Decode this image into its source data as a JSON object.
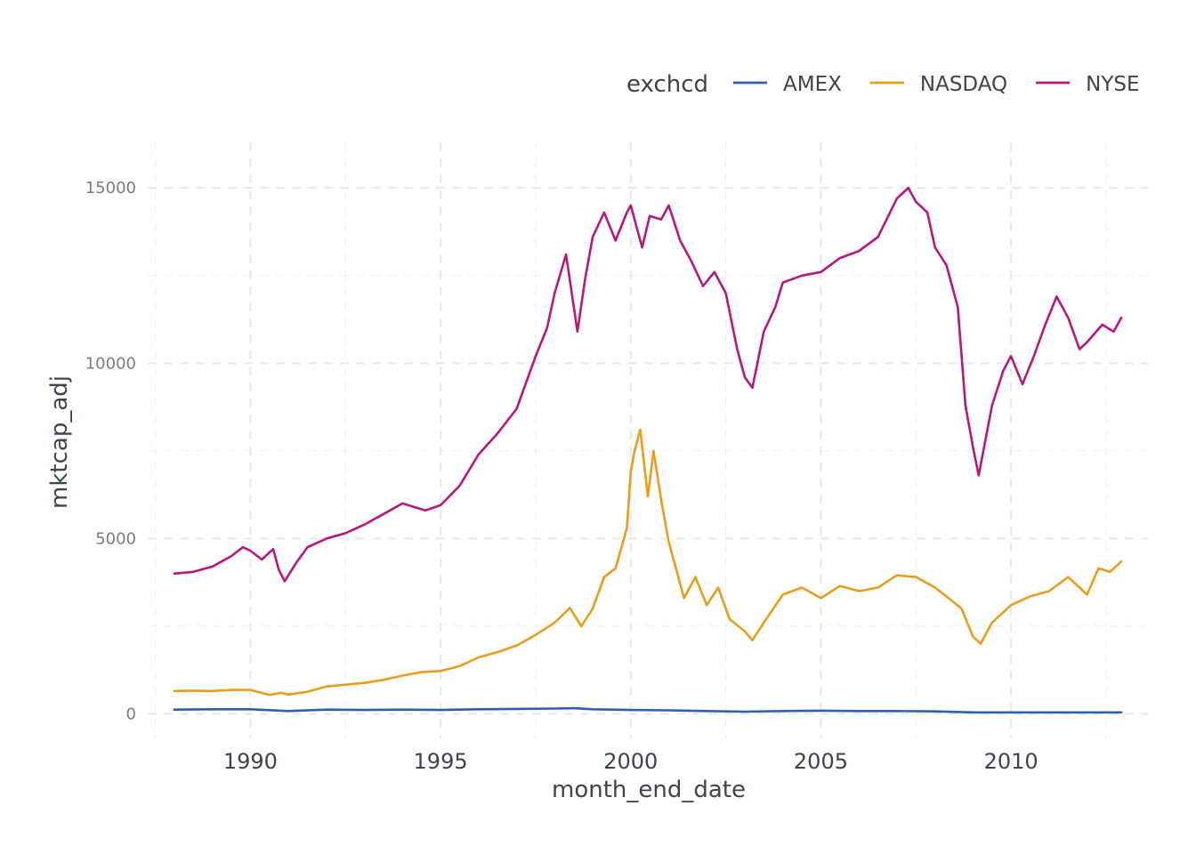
{
  "chart_data": {
    "type": "line",
    "xlabel": "month_end_date",
    "ylabel": "mktcap_adj",
    "legend_title": "exchcd",
    "legend_position": "top-right",
    "grid": "dashed major and minor",
    "xlim": [
      1987.3,
      2013.6
    ],
    "ylim": [
      -700,
      16300
    ],
    "x_ticks": [
      1990,
      1995,
      2000,
      2005,
      2010
    ],
    "x_tick_labels": [
      "1990",
      "1995",
      "2000",
      "2005",
      "2010"
    ],
    "y_ticks": [
      0,
      5000,
      10000,
      15000
    ],
    "y_tick_labels": [
      "0",
      "5000",
      "10000",
      "15000"
    ],
    "series": [
      {
        "name": "AMEX",
        "color": "#2f5fb3",
        "points": [
          [
            1988.0,
            120
          ],
          [
            1989.0,
            130
          ],
          [
            1990.0,
            130
          ],
          [
            1991.0,
            80
          ],
          [
            1992.0,
            120
          ],
          [
            1993.0,
            110
          ],
          [
            1994.0,
            120
          ],
          [
            1995.0,
            110
          ],
          [
            1996.0,
            130
          ],
          [
            1997.0,
            140
          ],
          [
            1998.0,
            150
          ],
          [
            1998.5,
            160
          ],
          [
            1999.0,
            130
          ],
          [
            2000.0,
            110
          ],
          [
            2001.0,
            100
          ],
          [
            2002.0,
            80
          ],
          [
            2003.0,
            60
          ],
          [
            2004.0,
            80
          ],
          [
            2005.0,
            90
          ],
          [
            2006.0,
            80
          ],
          [
            2007.0,
            80
          ],
          [
            2008.0,
            70
          ],
          [
            2009.0,
            40
          ],
          [
            2010.0,
            40
          ],
          [
            2011.0,
            40
          ],
          [
            2012.0,
            40
          ],
          [
            2012.9,
            40
          ]
        ]
      },
      {
        "name": "NASDAQ",
        "color": "#e89e1b",
        "points": [
          [
            1988.0,
            650
          ],
          [
            1988.5,
            660
          ],
          [
            1989.0,
            650
          ],
          [
            1989.5,
            680
          ],
          [
            1990.0,
            680
          ],
          [
            1990.5,
            540
          ],
          [
            1990.8,
            600
          ],
          [
            1991.0,
            550
          ],
          [
            1991.5,
            630
          ],
          [
            1992.0,
            780
          ],
          [
            1992.5,
            830
          ],
          [
            1993.0,
            880
          ],
          [
            1993.5,
            970
          ],
          [
            1994.0,
            1090
          ],
          [
            1994.5,
            1190
          ],
          [
            1995.0,
            1220
          ],
          [
            1995.5,
            1360
          ],
          [
            1996.0,
            1610
          ],
          [
            1996.5,
            1760
          ],
          [
            1997.0,
            1950
          ],
          [
            1997.5,
            2250
          ],
          [
            1998.0,
            2600
          ],
          [
            1998.4,
            3020
          ],
          [
            1998.7,
            2500
          ],
          [
            1999.0,
            3000
          ],
          [
            1999.3,
            3900
          ],
          [
            1999.6,
            4150
          ],
          [
            1999.9,
            5300
          ],
          [
            2000.0,
            6900
          ],
          [
            2000.1,
            7500
          ],
          [
            2000.25,
            8100
          ],
          [
            2000.45,
            6200
          ],
          [
            2000.6,
            7500
          ],
          [
            2000.8,
            6100
          ],
          [
            2001.0,
            4900
          ],
          [
            2001.2,
            4100
          ],
          [
            2001.4,
            3300
          ],
          [
            2001.7,
            3900
          ],
          [
            2002.0,
            3100
          ],
          [
            2002.3,
            3600
          ],
          [
            2002.6,
            2700
          ],
          [
            2003.0,
            2350
          ],
          [
            2003.2,
            2100
          ],
          [
            2003.5,
            2600
          ],
          [
            2004.0,
            3400
          ],
          [
            2004.5,
            3600
          ],
          [
            2005.0,
            3300
          ],
          [
            2005.5,
            3650
          ],
          [
            2006.0,
            3500
          ],
          [
            2006.5,
            3600
          ],
          [
            2007.0,
            3950
          ],
          [
            2007.5,
            3900
          ],
          [
            2008.0,
            3600
          ],
          [
            2008.3,
            3350
          ],
          [
            2008.7,
            3000
          ],
          [
            2009.0,
            2200
          ],
          [
            2009.2,
            2000
          ],
          [
            2009.5,
            2600
          ],
          [
            2010.0,
            3100
          ],
          [
            2010.5,
            3350
          ],
          [
            2011.0,
            3500
          ],
          [
            2011.5,
            3900
          ],
          [
            2011.8,
            3600
          ],
          [
            2012.0,
            3400
          ],
          [
            2012.3,
            4150
          ],
          [
            2012.6,
            4050
          ],
          [
            2012.9,
            4350
          ]
        ]
      },
      {
        "name": "NYSE",
        "color": "#b8177d",
        "points": [
          [
            1988.0,
            4000
          ],
          [
            1988.5,
            4050
          ],
          [
            1989.0,
            4200
          ],
          [
            1989.5,
            4500
          ],
          [
            1989.8,
            4750
          ],
          [
            1990.0,
            4650
          ],
          [
            1990.3,
            4400
          ],
          [
            1990.6,
            4700
          ],
          [
            1990.75,
            4100
          ],
          [
            1990.9,
            3780
          ],
          [
            1991.2,
            4300
          ],
          [
            1991.5,
            4750
          ],
          [
            1992.0,
            5000
          ],
          [
            1992.5,
            5150
          ],
          [
            1993.0,
            5400
          ],
          [
            1993.5,
            5700
          ],
          [
            1994.0,
            6000
          ],
          [
            1994.3,
            5900
          ],
          [
            1994.6,
            5800
          ],
          [
            1995.0,
            5950
          ],
          [
            1995.5,
            6500
          ],
          [
            1996.0,
            7400
          ],
          [
            1996.5,
            8000
          ],
          [
            1997.0,
            8700
          ],
          [
            1997.5,
            10200
          ],
          [
            1997.8,
            11000
          ],
          [
            1998.0,
            12000
          ],
          [
            1998.3,
            13100
          ],
          [
            1998.6,
            10900
          ],
          [
            1998.8,
            12400
          ],
          [
            1999.0,
            13600
          ],
          [
            1999.3,
            14300
          ],
          [
            1999.6,
            13500
          ],
          [
            1999.9,
            14300
          ],
          [
            2000.0,
            14500
          ],
          [
            2000.3,
            13300
          ],
          [
            2000.5,
            14200
          ],
          [
            2000.8,
            14100
          ],
          [
            2001.0,
            14500
          ],
          [
            2001.3,
            13500
          ],
          [
            2001.6,
            12900
          ],
          [
            2001.9,
            12200
          ],
          [
            2002.2,
            12600
          ],
          [
            2002.5,
            12000
          ],
          [
            2002.8,
            10400
          ],
          [
            2003.0,
            9600
          ],
          [
            2003.2,
            9300
          ],
          [
            2003.5,
            10900
          ],
          [
            2003.8,
            11600
          ],
          [
            2004.0,
            12300
          ],
          [
            2004.5,
            12500
          ],
          [
            2005.0,
            12600
          ],
          [
            2005.5,
            13000
          ],
          [
            2006.0,
            13200
          ],
          [
            2006.5,
            13600
          ],
          [
            2007.0,
            14700
          ],
          [
            2007.3,
            15000
          ],
          [
            2007.5,
            14600
          ],
          [
            2007.8,
            14300
          ],
          [
            2008.0,
            13300
          ],
          [
            2008.3,
            12800
          ],
          [
            2008.6,
            11600
          ],
          [
            2008.8,
            8800
          ],
          [
            2009.0,
            7600
          ],
          [
            2009.15,
            6800
          ],
          [
            2009.5,
            8800
          ],
          [
            2009.8,
            9800
          ],
          [
            2010.0,
            10200
          ],
          [
            2010.3,
            9400
          ],
          [
            2010.6,
            10200
          ],
          [
            2010.9,
            11100
          ],
          [
            2011.2,
            11900
          ],
          [
            2011.5,
            11300
          ],
          [
            2011.8,
            10400
          ],
          [
            2012.0,
            10600
          ],
          [
            2012.4,
            11100
          ],
          [
            2012.7,
            10900
          ],
          [
            2012.9,
            11300
          ]
        ]
      }
    ]
  }
}
